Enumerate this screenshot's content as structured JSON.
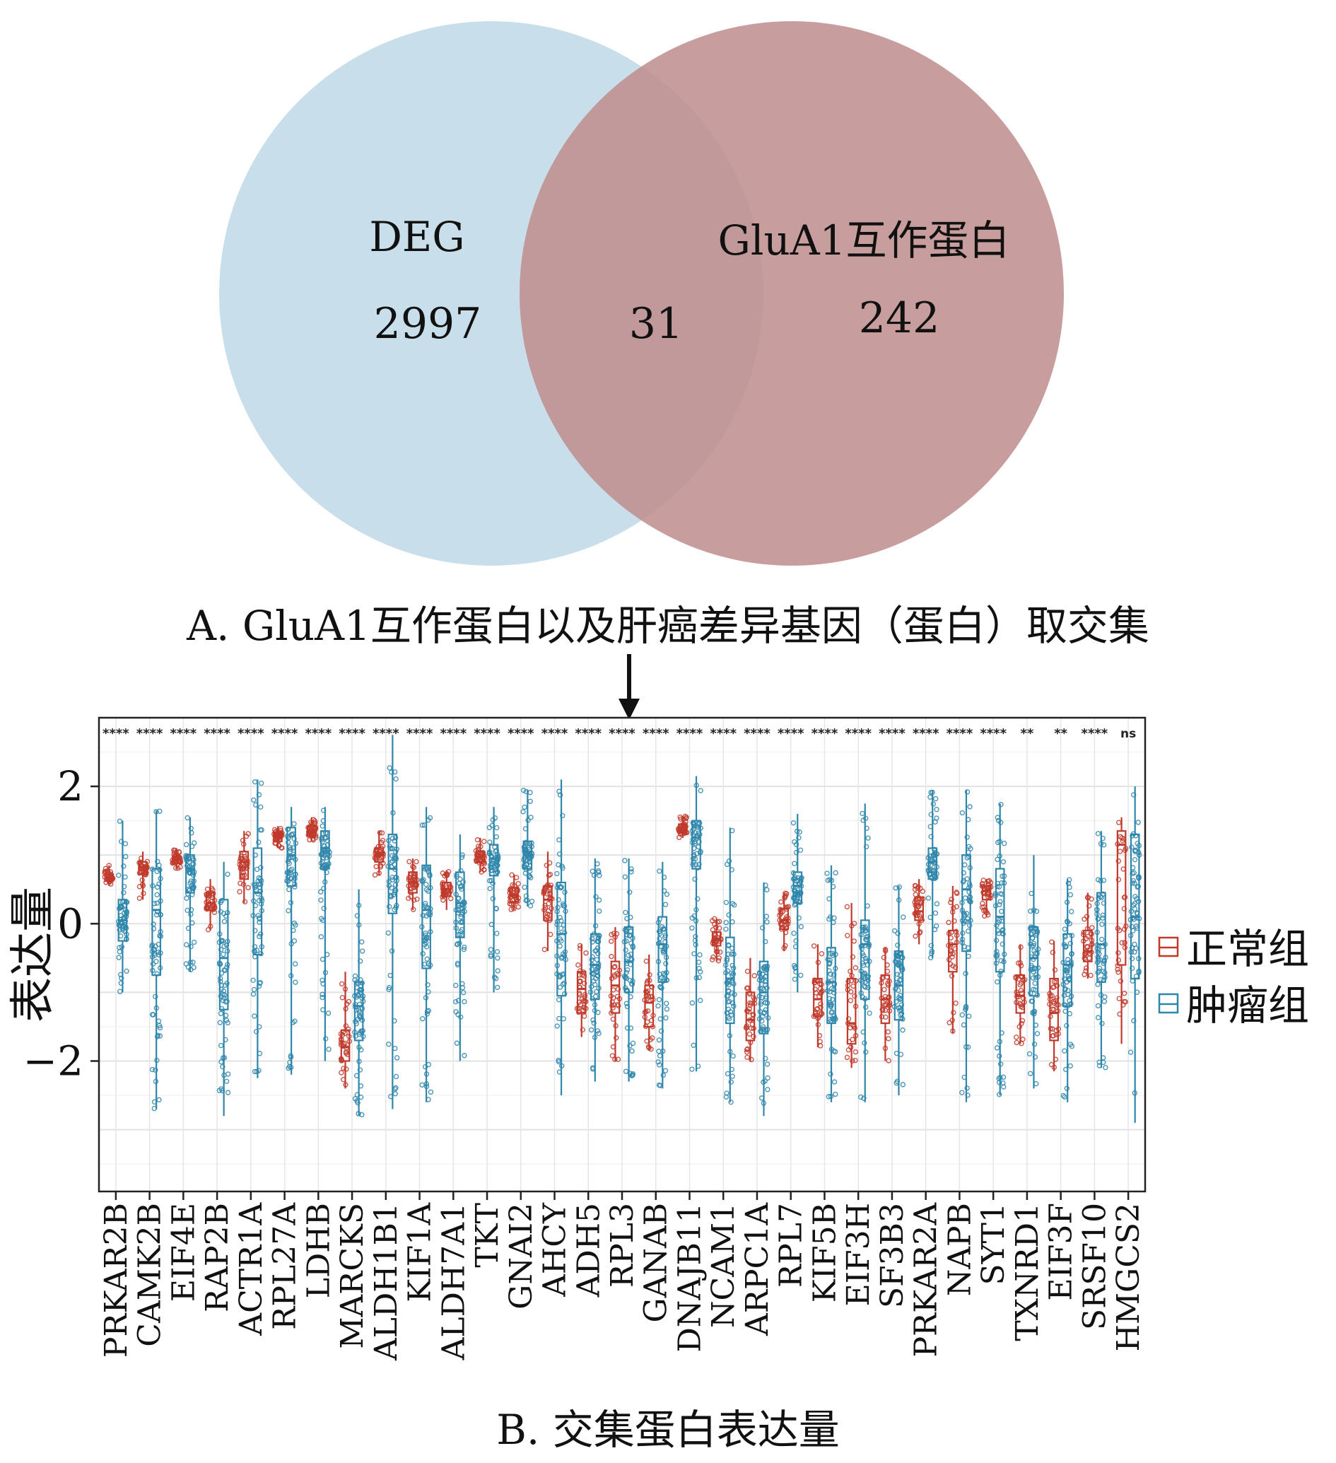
{
  "venn": {
    "left_label": "DEG",
    "left_count": "2997",
    "intersection_count": "31",
    "right_label": "GluA1互作蛋白",
    "right_count": "242",
    "left_color": "#c8dfeb",
    "right_color": "#c09090",
    "caption": "A. GluA1互作蛋白以及肝癌差异基因（蛋白）取交集"
  },
  "chart_data": {
    "type": "box",
    "title": "B. 交集蛋白表达量",
    "ylabel": "表达量",
    "ylim": [
      -3.9,
      3.0
    ],
    "yticks": [
      {
        "value": 2,
        "label": "2"
      },
      {
        "value": 0,
        "label": "0"
      },
      {
        "value": -2,
        "label": "−2"
      }
    ],
    "legend": [
      {
        "name": "正常组",
        "color": "#c0392b"
      },
      {
        "name": "肿瘤组",
        "color": "#2e86ab"
      }
    ],
    "categories": [
      "PRKAR2B",
      "CAMK2B",
      "EIF4E",
      "RAP2B",
      "ACTR1A",
      "RPL27A",
      "LDHB",
      "MARCKS",
      "ALDH1B1",
      "KIF1A",
      "ALDH7A1",
      "TKT",
      "GNAI2",
      "AHCY",
      "ADH5",
      "RPL3",
      "GANAB",
      "DNAJB11",
      "NCAM1",
      "ARPC1A",
      "RPL7",
      "KIF5B",
      "EIF3H",
      "SF3B3",
      "PRKAR2A",
      "NAPB",
      "SYT1",
      "TXNRD1",
      "EIF3F",
      "SRSF10",
      "HMGCS2"
    ],
    "significance": [
      "****",
      "****",
      "****",
      "****",
      "****",
      "****",
      "****",
      "****",
      "****",
      "****",
      "****",
      "****",
      "****",
      "****",
      "****",
      "****",
      "****",
      "****",
      "****",
      "****",
      "****",
      "****",
      "****",
      "****",
      "****",
      "****",
      "****",
      "**",
      "**",
      "****",
      "ns"
    ],
    "series": [
      {
        "name": "正常组",
        "stats": [
          [
            0.55,
            0.62,
            0.67,
            0.72,
            0.85
          ],
          [
            0.35,
            0.72,
            0.82,
            0.9,
            1.05
          ],
          [
            0.8,
            0.88,
            0.93,
            0.98,
            1.1
          ],
          [
            -0.1,
            0.2,
            0.3,
            0.45,
            0.65
          ],
          [
            0.3,
            0.65,
            0.9,
            1.05,
            1.35
          ],
          [
            1.1,
            1.2,
            1.27,
            1.32,
            1.42
          ],
          [
            1.2,
            1.28,
            1.35,
            1.42,
            1.55
          ],
          [
            -2.4,
            -2.0,
            -1.8,
            -1.55,
            -0.7
          ],
          [
            0.7,
            0.9,
            1.0,
            1.1,
            1.35
          ],
          [
            0.2,
            0.45,
            0.6,
            0.75,
            0.95
          ],
          [
            0.2,
            0.4,
            0.5,
            0.6,
            0.78
          ],
          [
            0.75,
            0.9,
            0.98,
            1.05,
            1.25
          ],
          [
            0.2,
            0.32,
            0.42,
            0.52,
            0.72
          ],
          [
            -0.4,
            0.05,
            0.35,
            0.55,
            1.05
          ],
          [
            -1.65,
            -1.3,
            -0.95,
            -0.7,
            -0.3
          ],
          [
            -2.0,
            -1.3,
            -0.9,
            -0.55,
            -0.05
          ],
          [
            -1.85,
            -1.5,
            -1.15,
            -0.9,
            -0.45
          ],
          [
            1.25,
            1.32,
            1.38,
            1.45,
            1.57
          ],
          [
            -0.55,
            -0.32,
            -0.22,
            -0.12,
            0.08
          ],
          [
            -2.0,
            -1.7,
            -1.4,
            -1.0,
            -0.5
          ],
          [
            -0.4,
            -0.08,
            0.05,
            0.22,
            0.45
          ],
          [
            -1.8,
            -1.35,
            -1.1,
            -0.8,
            -0.3
          ],
          [
            -2.1,
            -1.75,
            -1.45,
            -0.8,
            0.3
          ],
          [
            -2.0,
            -1.45,
            -1.1,
            -0.75,
            -0.35
          ],
          [
            -0.3,
            0.05,
            0.18,
            0.38,
            0.65
          ],
          [
            -1.6,
            -0.7,
            -0.3,
            -0.1,
            0.55
          ],
          [
            0.1,
            0.35,
            0.48,
            0.55,
            0.65
          ],
          [
            -1.75,
            -1.3,
            -1.05,
            -0.75,
            -0.3
          ],
          [
            -2.15,
            -1.7,
            -1.3,
            -0.8,
            -0.25
          ],
          [
            -0.8,
            -0.55,
            -0.4,
            -0.1,
            0.45
          ],
          [
            -1.75,
            -0.6,
            1.15,
            1.35,
            1.55
          ]
        ]
      },
      {
        "name": "肿瘤组",
        "stats": [
          [
            -1.0,
            -0.25,
            0.05,
            0.35,
            1.5
          ],
          [
            -2.7,
            -0.75,
            0.2,
            0.8,
            1.65
          ],
          [
            -0.7,
            0.45,
            0.8,
            1.0,
            1.55
          ],
          [
            -2.8,
            -1.25,
            -0.5,
            0.35,
            0.9
          ],
          [
            -2.25,
            -0.45,
            0.45,
            1.1,
            2.1
          ],
          [
            -2.2,
            0.55,
            1.0,
            1.4,
            1.7
          ],
          [
            -2.0,
            0.8,
            1.1,
            1.35,
            1.7
          ],
          [
            -2.8,
            -1.7,
            -1.2,
            -0.85,
            0.5
          ],
          [
            -2.7,
            0.15,
            0.8,
            1.3,
            2.75
          ],
          [
            -2.6,
            -0.65,
            0.2,
            0.85,
            1.7
          ],
          [
            -2.0,
            -0.2,
            0.3,
            0.75,
            1.3
          ],
          [
            -1.0,
            0.7,
            0.95,
            1.15,
            1.7
          ],
          [
            0.25,
            0.8,
            1.05,
            1.2,
            1.95
          ],
          [
            -2.5,
            -1.05,
            -0.15,
            0.6,
            2.1
          ],
          [
            -2.3,
            -1.1,
            -0.6,
            -0.15,
            0.95
          ],
          [
            -2.3,
            -1.0,
            -0.55,
            -0.05,
            0.95
          ],
          [
            -2.4,
            -0.85,
            -0.3,
            0.1,
            0.9
          ],
          [
            -2.15,
            0.8,
            1.25,
            1.5,
            2.15
          ],
          [
            -2.6,
            -1.45,
            -0.8,
            -0.2,
            1.4
          ],
          [
            -2.8,
            -1.6,
            -1.0,
            -0.55,
            0.6
          ],
          [
            -1.0,
            0.3,
            0.55,
            0.75,
            1.6
          ],
          [
            -2.6,
            -1.45,
            -0.85,
            -0.35,
            0.85
          ],
          [
            -2.6,
            -1.1,
            -0.3,
            0.05,
            1.75
          ],
          [
            -2.5,
            -1.4,
            -0.9,
            -0.4,
            0.55
          ],
          [
            -0.5,
            0.65,
            0.9,
            1.1,
            1.95
          ],
          [
            -2.6,
            -0.4,
            0.5,
            1.0,
            1.95
          ],
          [
            -2.5,
            -0.7,
            0.1,
            0.8,
            1.75
          ],
          [
            -2.4,
            -1.05,
            -0.5,
            -0.05,
            1.0
          ],
          [
            -2.6,
            -1.2,
            -0.6,
            -0.15,
            0.65
          ],
          [
            -2.1,
            -0.85,
            -0.3,
            0.45,
            1.35
          ],
          [
            -2.9,
            -0.8,
            0.1,
            1.3,
            2.0
          ]
        ]
      }
    ]
  }
}
